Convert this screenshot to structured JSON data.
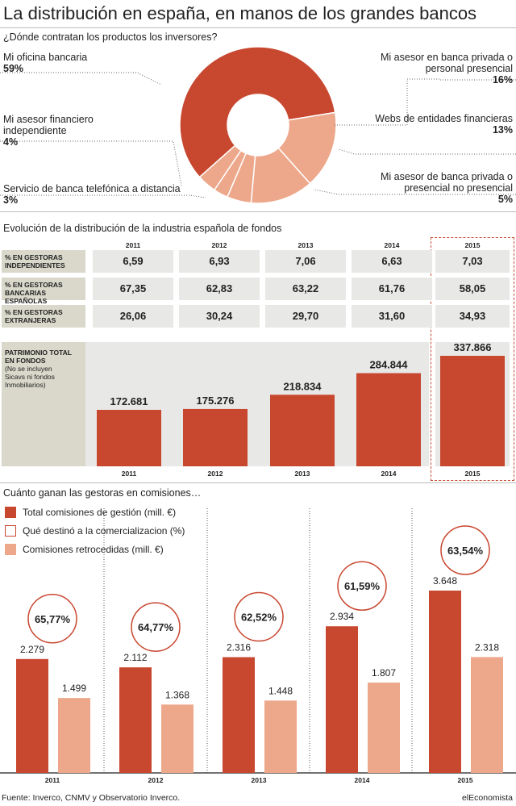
{
  "title": "La distribución en españa, en manos de los grandes bancos",
  "subtitle": "¿Dónde contratan los productos los inversores?",
  "colors": {
    "dark": "#c8472f",
    "light": "#eda88b",
    "panel": "#d9d8cb",
    "cell": "#e8e8e6"
  },
  "pie": {
    "slices": [
      {
        "label": "Mi oficina bancaria",
        "value_label": "59%",
        "value": 59,
        "color": "#c8472f"
      },
      {
        "label": "Mi asesor en banca privada o personal presencial",
        "value_label": "16%",
        "value": 16,
        "color": "#eda88b"
      },
      {
        "label": "Webs de entidades financieras",
        "value_label": "13%",
        "value": 13,
        "color": "#eda88b"
      },
      {
        "label": "Mi asesor de banca privada o presencial no presencial",
        "value_label": "5%",
        "value": 5,
        "color": "#eda88b"
      },
      {
        "label": "Servicio de banca telefónica a distancia",
        "value_label": "3%",
        "value": 3,
        "color": "#eda88b"
      },
      {
        "label": "Mi asesor financiero independiente",
        "value_label": "4%",
        "value": 4,
        "color": "#eda88b"
      }
    ],
    "labels": {
      "oficina": "Mi oficina bancaria",
      "oficina_val": "59%",
      "asesor_fin_1": "Mi asesor financiero",
      "asesor_fin_2": "independiente",
      "asesor_fin_val": "4%",
      "telefonica": "Servicio de banca telefónica a distancia",
      "telefonica_val": "3%",
      "privada_1": "Mi asesor en banca privada o",
      "privada_2": "personal presencial",
      "privada_val": "16%",
      "webs": "Webs de entidades financieras",
      "webs_val": "13%",
      "noprese_1": "Mi asesor de banca privada o",
      "noprese_2": "presencial no presencial",
      "noprese_val": "5%"
    }
  },
  "table": {
    "title": "Evolución de la distribución de la industria española de fondos",
    "years": [
      "2011",
      "2012",
      "2013",
      "2014",
      "2015"
    ],
    "rows": [
      {
        "label_1": "% EN GESTORAS",
        "label_2": "INDEPENDIENTES",
        "values": [
          "6,59",
          "6,93",
          "7,06",
          "6,63",
          "7,03"
        ]
      },
      {
        "label_1": "% EN GESTORAS",
        "label_2": "BANCARIAS ESPAÑOLAS",
        "values": [
          "67,35",
          "62,83",
          "63,22",
          "61,76",
          "58,05"
        ]
      },
      {
        "label_1": "% EN GESTORAS",
        "label_2": "EXTRANJERAS",
        "values": [
          "26,06",
          "30,24",
          "29,70",
          "31,60",
          "34,93"
        ]
      }
    ],
    "patrimonio_1": "PATRIMONIO TOTAL",
    "patrimonio_2": "EN FONDOS",
    "patrimonio_3": "(No se incluyen",
    "patrimonio_4": "Sicavs ni fondos",
    "patrimonio_5": "Inmobiliarios)"
  },
  "chart_data": [
    {
      "type": "bar",
      "title": "",
      "categories": [
        "2011",
        "2012",
        "2013",
        "2014",
        "2015"
      ],
      "values": [
        172681,
        175276,
        218834,
        284844,
        337866
      ],
      "value_labels": [
        "172.681",
        "175.276",
        "218.834",
        "284.844",
        "337.866"
      ],
      "ylim": [
        0,
        345000
      ]
    },
    {
      "type": "bar",
      "title": "Cuánto ganan las gestoras en comisiones…",
      "categories": [
        "2011",
        "2012",
        "2013",
        "2014",
        "2015"
      ],
      "series": [
        {
          "name": "Total comisiones de gestión (mill. €)",
          "values": [
            2279,
            2112,
            2316,
            2934,
            3648
          ],
          "value_labels": [
            "2.279",
            "2.112",
            "2.316",
            "2.934",
            "3.648"
          ]
        },
        {
          "name": "Comisiones retrocedidas (mill. €)",
          "values": [
            1499,
            1368,
            1448,
            1807,
            2318
          ],
          "value_labels": [
            "1.499",
            "1.368",
            "1.448",
            "1.807",
            "2.318"
          ]
        }
      ],
      "percent_series": {
        "name": "Qué destinó a la comercializacion (%)",
        "values": [
          65.77,
          64.77,
          62.52,
          61.59,
          63.54
        ],
        "value_labels": [
          "65,77%",
          "64,77%",
          "62,52%",
          "61,59%",
          "63,54%"
        ]
      },
      "ylim": [
        0,
        4000
      ]
    }
  ],
  "commissions_legend": {
    "total": "Total comisiones de gestión (mill. €)",
    "pct": "Qué destinó a la comercializacion (%)",
    "retro": "Comisiones retrocedidas (mill. €)"
  },
  "footer": {
    "source": "Fuente: Inverco, CNMV y Observatorio Inverco.",
    "brand": "elEconomista"
  }
}
